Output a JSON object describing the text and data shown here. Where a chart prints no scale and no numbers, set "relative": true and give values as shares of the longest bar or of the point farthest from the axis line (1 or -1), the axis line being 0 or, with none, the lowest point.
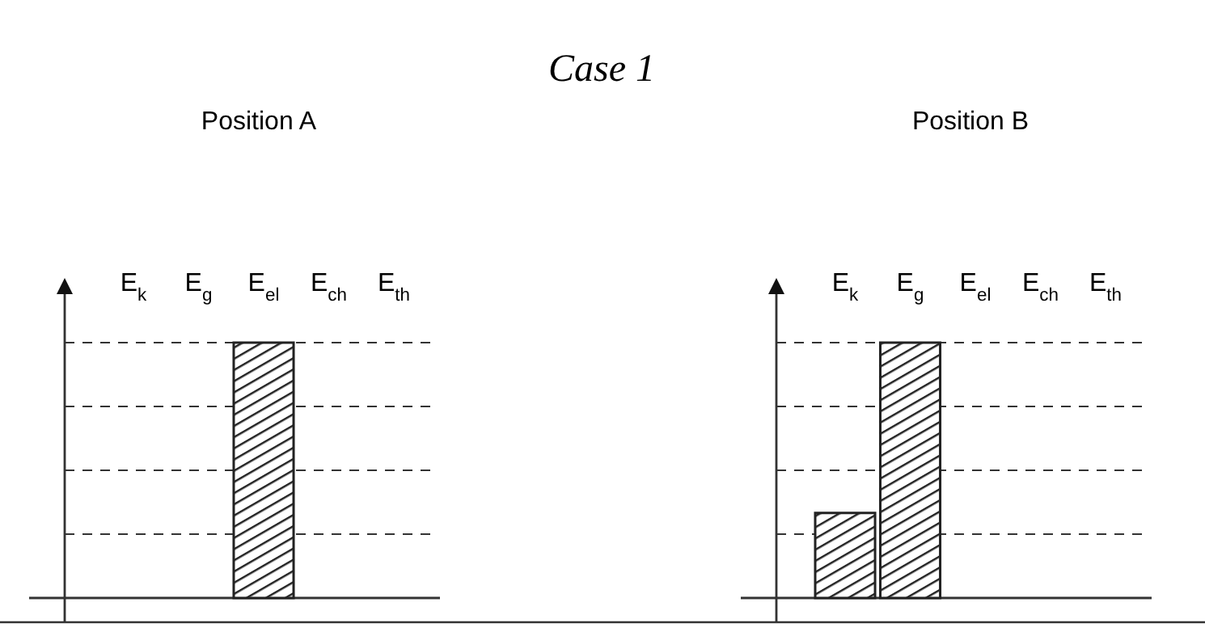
{
  "chart_data": [
    {
      "type": "bar",
      "title": "Position A",
      "annotations": [
        "Case 1"
      ],
      "relative": true,
      "categories": [
        "E$_{k}$",
        "E$_{g}$",
        "E$_{el}$",
        "E$_{ch}$",
        "E$_{th}$"
      ],
      "series": [
        {
          "color": "#222222",
          "values": [
            0,
            0,
            1,
            0,
            0
          ]
        }
      ]
    },
    {
      "type": "bar",
      "title": "Position B",
      "relative": true,
      "categories": [
        "E$_{k}$",
        "E$_{g}$",
        "E$_{el}$",
        "E$_{ch}$",
        "E$_{th}$"
      ],
      "series": [
        {
          "color": "#222222",
          "values": [
            0.333,
            1,
            0,
            0,
            0
          ]
        }
      ]
    }
  ]
}
